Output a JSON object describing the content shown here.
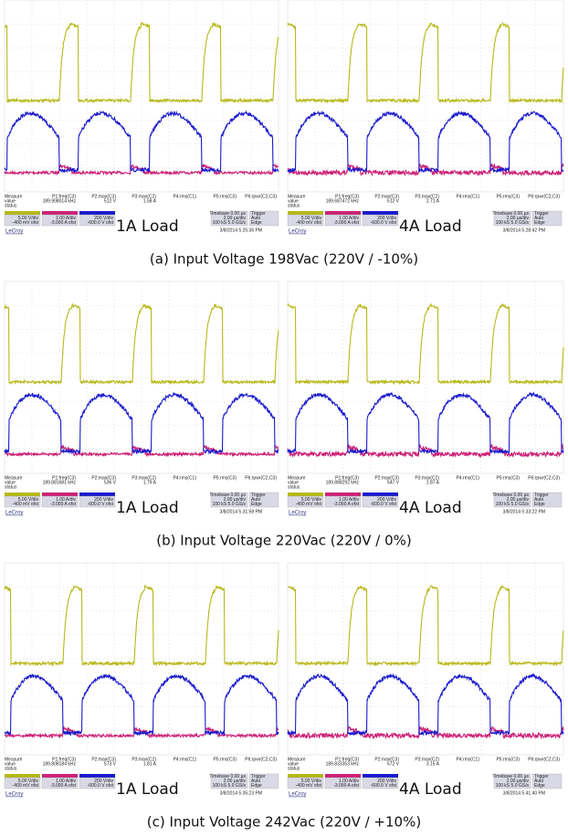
{
  "common": {
    "measure_label": "Measure",
    "value_label": "value",
    "status_label": "status",
    "params": [
      "P1:freq(C3)",
      "P2:max(C3)",
      "P3:max(C2)",
      "P4:rms(C1)",
      "P5:rms(C3)",
      "P6:rpwr(C2,C3)"
    ],
    "channels": [
      [
        "5.00 V/div",
        "-400 mV ofst"
      ],
      [
        "1.00 A/div",
        "-3.000 A ofst"
      ],
      [
        "200 V/div",
        "-600.0 V ofst"
      ]
    ],
    "timebase": [
      "Timebase 0.00 µs",
      "2.00 µs/div",
      "100 kS 5.0 GS/s"
    ],
    "trigger": [
      "Trigger",
      "Auto",
      "Edge"
    ],
    "brand": "LeCroy"
  },
  "rows": [
    {
      "caption": "(a) Input Voltage 198Vac (220V / -10%)",
      "scopes": [
        {
          "load": "1A Load",
          "values": [
            "189.908014 kHz",
            "512 V",
            "1.58 A"
          ],
          "timestamp": "3/8/2014 5:25:36 PM"
        },
        {
          "load": "4A Load",
          "values": [
            "189.687472 kHz",
            "512 V",
            "2.71 A"
          ],
          "timestamp": "3/8/2014 5:28:42 PM"
        }
      ]
    },
    {
      "caption": "(b) Input Voltage 220Vac (220V / 0%)",
      "scopes": [
        {
          "load": "1A Load",
          "values": [
            "189.881681 kHz",
            "536 V",
            "1.79 A"
          ],
          "timestamp": "3/8/2014 5:31:58 PM"
        },
        {
          "load": "4A Load",
          "values": [
            "189.888292 kHz",
            "547 V",
            "2.87 A"
          ],
          "timestamp": "3/8/2014 5:33:22 PM"
        }
      ]
    },
    {
      "caption": "(c) Input Voltage 242Vac (220V / +10%)",
      "scopes": [
        {
          "load": "1A Load",
          "values": [
            "189.808184 kHz",
            "573 V",
            "1.81 A"
          ],
          "timestamp": "3/8/2014 5:35:23 PM"
        },
        {
          "load": "4A Load",
          "values": [
            "189.833353 kHz",
            "572 V",
            "3.15 A"
          ],
          "timestamp": "3/8/2014 5:41:40 PM"
        }
      ]
    }
  ]
}
